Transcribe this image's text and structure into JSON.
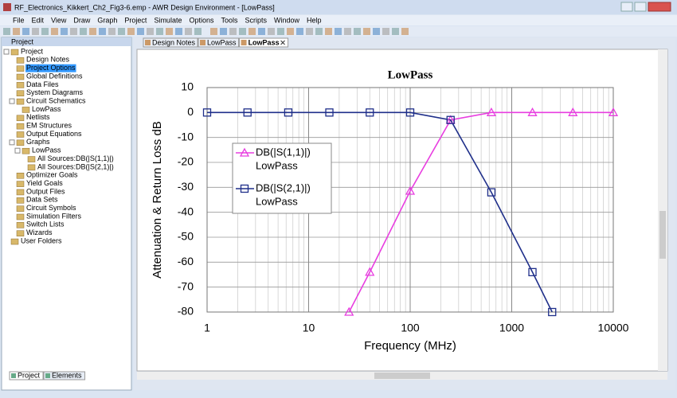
{
  "window": {
    "title": "RF_Electronics_Kikkert_Ch2_Fig3-6.emp - AWR Design Environment - [LowPass]",
    "menu": [
      "File",
      "Edit",
      "View",
      "Draw",
      "Graph",
      "Project",
      "Simulate",
      "Options",
      "Tools",
      "Scripts",
      "Window",
      "Help"
    ]
  },
  "project_panel": {
    "title": "Project",
    "tree": [
      {
        "label": "Project",
        "children": [
          {
            "label": "Design Notes"
          },
          {
            "label": "Project Options",
            "selected": true
          },
          {
            "label": "Global Definitions"
          },
          {
            "label": "Data Files"
          },
          {
            "label": "System Diagrams"
          },
          {
            "label": "Circuit Schematics",
            "children": [
              {
                "label": "LowPass"
              }
            ]
          },
          {
            "label": "Netlists"
          },
          {
            "label": "EM Structures"
          },
          {
            "label": "Output Equations"
          },
          {
            "label": "Graphs",
            "children": [
              {
                "label": "LowPass",
                "children": [
                  {
                    "label": "All Sources:DB(|S(1,1)|)"
                  },
                  {
                    "label": "All Sources:DB(|S(2,1)|)"
                  }
                ]
              }
            ]
          },
          {
            "label": "Optimizer Goals"
          },
          {
            "label": "Yield Goals"
          },
          {
            "label": "Output Files"
          },
          {
            "label": "Data Sets"
          },
          {
            "label": "Circuit Symbols"
          },
          {
            "label": "Simulation Filters"
          },
          {
            "label": "Switch Lists"
          },
          {
            "label": "Wizards"
          }
        ]
      },
      {
        "label": "User Folders"
      }
    ],
    "tabs": [
      "Project",
      "Elements"
    ]
  },
  "document_tabs": [
    "Design Notes",
    "LowPass",
    "LowPass"
  ],
  "chart_data": {
    "type": "line",
    "title": "LowPass",
    "x_label": "Frequency (MHz)",
    "y_label": "Attenuation & Return Loss dB",
    "xscale": "log",
    "xlim": [
      1,
      10000
    ],
    "xticks": [
      1,
      10,
      100,
      1000,
      10000
    ],
    "ylim": [
      -80,
      10
    ],
    "yticks": [
      10,
      0,
      -10,
      -20,
      -30,
      -40,
      -50,
      -60,
      -70,
      -80
    ],
    "grid": true,
    "legend": "upper left",
    "series": [
      {
        "name": "DB(|S(1,1)|)",
        "source": "LowPass",
        "color": "#e83ee0",
        "marker": "triangle",
        "x": [
          25,
          40,
          100,
          250,
          630,
          1600,
          4000,
          10000
        ],
        "values": [
          -80,
          -64,
          -31.5,
          -3,
          0,
          0,
          0,
          0
        ]
      },
      {
        "name": "DB(|S(2,1)|)",
        "source": "LowPass",
        "color": "#1f2f8a",
        "marker": "square",
        "x": [
          1,
          2.5,
          6.3,
          16,
          40,
          100,
          250,
          630,
          1600,
          2500
        ],
        "values": [
          0,
          0,
          0,
          0,
          0,
          0,
          -3,
          -32,
          -64,
          -80
        ]
      }
    ]
  }
}
